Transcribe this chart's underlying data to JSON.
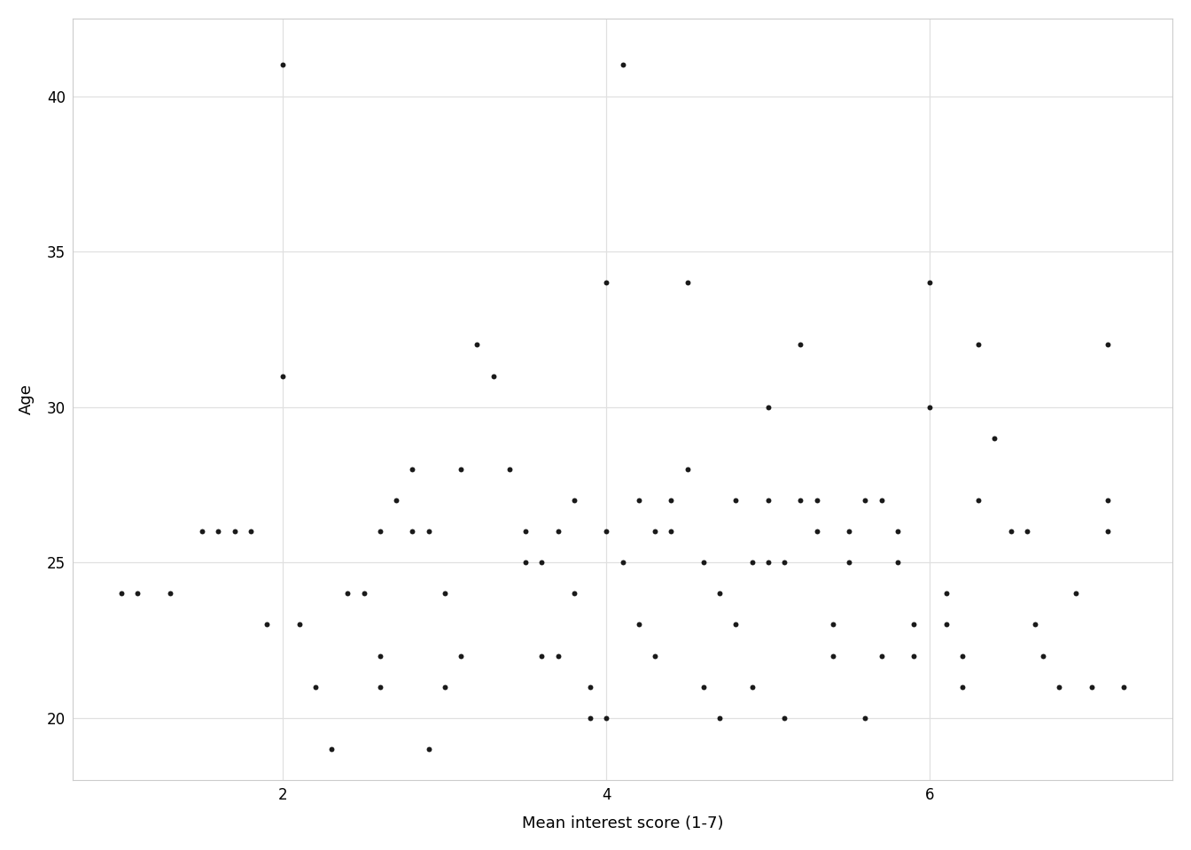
{
  "points_x": [
    1.0,
    1.1,
    1.3,
    1.5,
    1.6,
    1.7,
    1.8,
    1.9,
    2.0,
    2.0,
    2.1,
    2.2,
    2.3,
    2.4,
    2.5,
    2.6,
    2.6,
    2.6,
    2.7,
    2.8,
    2.8,
    2.9,
    2.9,
    3.0,
    3.0,
    3.1,
    3.1,
    3.2,
    3.3,
    3.4,
    3.5,
    3.5,
    3.6,
    3.6,
    3.7,
    3.7,
    3.8,
    3.8,
    3.9,
    3.9,
    4.0,
    4.0,
    4.0,
    4.1,
    4.1,
    4.2,
    4.2,
    4.3,
    4.3,
    4.4,
    4.4,
    4.5,
    4.5,
    4.6,
    4.6,
    4.7,
    4.7,
    4.8,
    4.8,
    4.9,
    4.9,
    5.0,
    5.0,
    5.0,
    5.1,
    5.1,
    5.2,
    5.2,
    5.3,
    5.3,
    5.4,
    5.4,
    5.5,
    5.5,
    5.6,
    5.6,
    5.7,
    5.7,
    5.8,
    5.8,
    5.9,
    5.9,
    6.0,
    6.0,
    6.1,
    6.1,
    6.2,
    6.2,
    6.3,
    6.3,
    6.4,
    6.5,
    6.6,
    6.65,
    6.7,
    6.8,
    6.9,
    7.0,
    7.1,
    7.1,
    7.1,
    7.2
  ],
  "points_y": [
    24,
    24,
    24,
    26,
    26,
    26,
    26,
    23,
    31,
    41,
    23,
    21,
    19,
    24,
    24,
    26,
    22,
    21,
    27,
    28,
    26,
    19,
    26,
    24,
    21,
    28,
    22,
    32,
    31,
    28,
    25,
    26,
    25,
    22,
    26,
    22,
    27,
    24,
    20,
    21,
    34,
    20,
    26,
    41,
    25,
    27,
    23,
    26,
    22,
    26,
    27,
    34,
    28,
    25,
    21,
    24,
    20,
    27,
    23,
    25,
    21,
    30,
    25,
    27,
    25,
    20,
    32,
    27,
    27,
    26,
    23,
    22,
    26,
    25,
    27,
    20,
    27,
    22,
    25,
    26,
    23,
    22,
    34,
    30,
    24,
    23,
    21,
    22,
    32,
    27,
    29,
    26,
    26,
    23,
    22,
    21,
    24,
    21,
    32,
    27,
    26,
    21
  ],
  "xlabel": "Mean interest score (1-7)",
  "ylabel": "Age",
  "xlim": [
    0.7,
    7.5
  ],
  "ylim": [
    18.0,
    42.5
  ],
  "xticks": [
    2,
    4,
    6
  ],
  "yticks": [
    20,
    25,
    30,
    35,
    40
  ],
  "background_color": "#ffffff",
  "grid_color": "#e0e0e0",
  "dot_color": "#1a1a1a",
  "dot_size": 18,
  "axis_label_fontsize": 13,
  "tick_label_fontsize": 12
}
